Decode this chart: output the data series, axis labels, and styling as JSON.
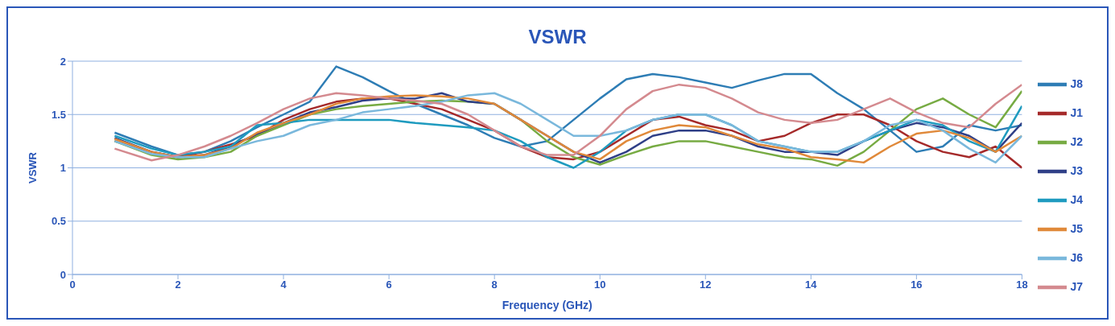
{
  "chart_data": {
    "type": "line",
    "title": "VSWR",
    "xlabel": "Frequency (GHz)",
    "ylabel": "VSWR",
    "x": [
      0.8,
      1.5,
      2,
      2.5,
      3,
      3.5,
      4,
      4.5,
      5,
      5.5,
      6,
      6.5,
      7,
      7.5,
      8,
      8.5,
      9,
      9.5,
      10,
      10.5,
      11,
      11.5,
      12,
      12.5,
      13,
      13.5,
      14,
      14.5,
      15,
      15.5,
      16,
      16.5,
      17,
      17.5,
      18
    ],
    "xlim": [
      0,
      18
    ],
    "xticks": [
      0,
      2,
      4,
      6,
      8,
      10,
      12,
      14,
      16,
      18
    ],
    "ylim": [
      0,
      2
    ],
    "yticks": [
      0,
      0.5,
      1,
      1.5,
      2
    ],
    "grid": "y",
    "legend": "right",
    "marker": "none",
    "line_style": "solid",
    "series": [
      {
        "name": "J8",
        "color": "#2e7db5",
        "values": [
          1.33,
          1.2,
          1.12,
          1.15,
          1.25,
          1.38,
          1.5,
          1.62,
          1.95,
          1.85,
          1.72,
          1.6,
          1.5,
          1.4,
          1.28,
          1.2,
          1.25,
          1.45,
          1.65,
          1.83,
          1.88,
          1.85,
          1.8,
          1.75,
          1.82,
          1.88,
          1.88,
          1.7,
          1.55,
          1.35,
          1.15,
          1.2,
          1.4,
          1.35,
          1.4
        ]
      },
      {
        "name": "J1",
        "color": "#a52a2a",
        "values": [
          1.25,
          1.15,
          1.1,
          1.15,
          1.22,
          1.3,
          1.45,
          1.55,
          1.62,
          1.65,
          1.65,
          1.6,
          1.55,
          1.45,
          1.35,
          1.2,
          1.1,
          1.08,
          1.15,
          1.3,
          1.45,
          1.48,
          1.4,
          1.35,
          1.25,
          1.3,
          1.42,
          1.5,
          1.5,
          1.4,
          1.25,
          1.15,
          1.1,
          1.2,
          1.0
        ]
      },
      {
        "name": "J2",
        "color": "#77ab43",
        "values": [
          1.25,
          1.12,
          1.08,
          1.1,
          1.15,
          1.3,
          1.4,
          1.5,
          1.55,
          1.58,
          1.6,
          1.62,
          1.63,
          1.62,
          1.6,
          1.45,
          1.25,
          1.1,
          1.03,
          1.12,
          1.2,
          1.25,
          1.25,
          1.2,
          1.15,
          1.1,
          1.08,
          1.02,
          1.15,
          1.35,
          1.55,
          1.65,
          1.5,
          1.38,
          1.72
        ]
      },
      {
        "name": "J3",
        "color": "#2f3f87",
        "values": [
          1.28,
          1.15,
          1.1,
          1.12,
          1.2,
          1.32,
          1.42,
          1.52,
          1.57,
          1.63,
          1.65,
          1.65,
          1.7,
          1.62,
          1.6,
          1.45,
          1.3,
          1.15,
          1.05,
          1.15,
          1.3,
          1.35,
          1.35,
          1.3,
          1.2,
          1.15,
          1.15,
          1.12,
          1.25,
          1.35,
          1.42,
          1.38,
          1.3,
          1.15,
          1.42
        ]
      },
      {
        "name": "J4",
        "color": "#1f9bbf",
        "values": [
          1.3,
          1.18,
          1.12,
          1.15,
          1.2,
          1.4,
          1.42,
          1.45,
          1.45,
          1.45,
          1.45,
          1.42,
          1.4,
          1.38,
          1.35,
          1.25,
          1.1,
          1.0,
          1.15,
          1.35,
          1.45,
          1.5,
          1.5,
          1.4,
          1.25,
          1.2,
          1.15,
          1.15,
          1.25,
          1.35,
          1.45,
          1.4,
          1.25,
          1.15,
          1.58
        ]
      },
      {
        "name": "J5",
        "color": "#e0893a",
        "values": [
          1.27,
          1.15,
          1.1,
          1.12,
          1.18,
          1.33,
          1.42,
          1.5,
          1.6,
          1.65,
          1.67,
          1.68,
          1.67,
          1.65,
          1.6,
          1.45,
          1.3,
          1.15,
          1.08,
          1.25,
          1.35,
          1.4,
          1.38,
          1.3,
          1.22,
          1.18,
          1.1,
          1.08,
          1.05,
          1.2,
          1.32,
          1.35,
          1.28,
          1.15,
          1.3
        ]
      },
      {
        "name": "J6",
        "color": "#7ab8dc",
        "values": [
          1.25,
          1.13,
          1.1,
          1.1,
          1.18,
          1.25,
          1.3,
          1.4,
          1.45,
          1.52,
          1.55,
          1.58,
          1.62,
          1.68,
          1.7,
          1.6,
          1.45,
          1.3,
          1.3,
          1.35,
          1.45,
          1.5,
          1.5,
          1.4,
          1.25,
          1.2,
          1.15,
          1.15,
          1.25,
          1.4,
          1.45,
          1.35,
          1.18,
          1.05,
          1.3
        ]
      },
      {
        "name": "J7",
        "color": "#d48a8f",
        "values": [
          1.18,
          1.07,
          1.12,
          1.2,
          1.3,
          1.42,
          1.55,
          1.65,
          1.7,
          1.68,
          1.65,
          1.63,
          1.6,
          1.5,
          1.35,
          1.2,
          1.12,
          1.12,
          1.3,
          1.55,
          1.72,
          1.78,
          1.75,
          1.65,
          1.52,
          1.45,
          1.42,
          1.45,
          1.55,
          1.65,
          1.52,
          1.42,
          1.38,
          1.6,
          1.78
        ]
      }
    ]
  }
}
